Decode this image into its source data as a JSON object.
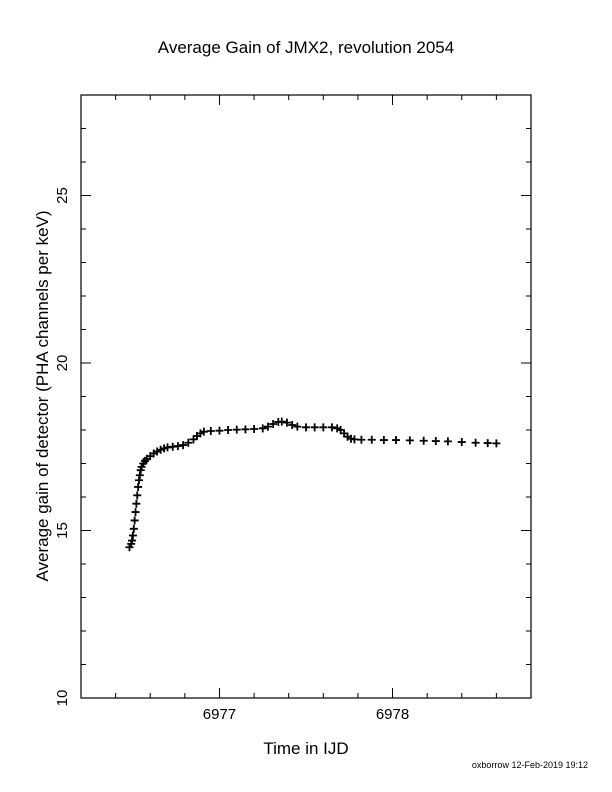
{
  "chart_data": {
    "type": "scatter",
    "title": "Average Gain of JMX2, revolution 2054",
    "xlabel": "Time in IJD",
    "ylabel": "Average gain of detector (PHA channels per keV)",
    "xlim": [
      6976.2,
      6978.8
    ],
    "ylim": [
      10,
      28
    ],
    "x_ticks": [
      6977,
      6978
    ],
    "y_ticks": [
      10,
      15,
      20,
      25
    ],
    "marker": "plus",
    "grid": false,
    "footer": "oxborrow 12-Feb-2019 19:12",
    "series": [
      {
        "points": [
          [
            6976.48,
            14.5
          ],
          [
            6976.49,
            14.6
          ],
          [
            6976.495,
            14.7
          ],
          [
            6976.5,
            14.85
          ],
          [
            6976.505,
            15.05
          ],
          [
            6976.51,
            15.3
          ],
          [
            6976.515,
            15.55
          ],
          [
            6976.52,
            15.8
          ],
          [
            6976.525,
            16.05
          ],
          [
            6976.53,
            16.3
          ],
          [
            6976.535,
            16.5
          ],
          [
            6976.54,
            16.65
          ],
          [
            6976.545,
            16.8
          ],
          [
            6976.55,
            16.9
          ],
          [
            6976.56,
            17.0
          ],
          [
            6976.57,
            17.08
          ],
          [
            6976.58,
            17.14
          ],
          [
            6976.6,
            17.22
          ],
          [
            6976.62,
            17.3
          ],
          [
            6976.64,
            17.36
          ],
          [
            6976.66,
            17.41
          ],
          [
            6976.68,
            17.45
          ],
          [
            6976.7,
            17.48
          ],
          [
            6976.73,
            17.5
          ],
          [
            6976.76,
            17.52
          ],
          [
            6976.79,
            17.55
          ],
          [
            6976.82,
            17.62
          ],
          [
            6976.85,
            17.72
          ],
          [
            6976.87,
            17.82
          ],
          [
            6976.89,
            17.9
          ],
          [
            6976.91,
            17.95
          ],
          [
            6976.95,
            17.97
          ],
          [
            6977.0,
            17.98
          ],
          [
            6977.05,
            18.0
          ],
          [
            6977.1,
            18.01
          ],
          [
            6977.15,
            18.02
          ],
          [
            6977.2,
            18.03
          ],
          [
            6977.25,
            18.05
          ],
          [
            6977.28,
            18.1
          ],
          [
            6977.31,
            18.18
          ],
          [
            6977.34,
            18.24
          ],
          [
            6977.36,
            18.25
          ],
          [
            6977.39,
            18.22
          ],
          [
            6977.42,
            18.15
          ],
          [
            6977.45,
            18.1
          ],
          [
            6977.5,
            18.08
          ],
          [
            6977.55,
            18.08
          ],
          [
            6977.6,
            18.08
          ],
          [
            6977.65,
            18.08
          ],
          [
            6977.68,
            18.05
          ],
          [
            6977.7,
            18.0
          ],
          [
            6977.72,
            17.9
          ],
          [
            6977.74,
            17.8
          ],
          [
            6977.76,
            17.74
          ],
          [
            6977.78,
            17.72
          ],
          [
            6977.82,
            17.71
          ],
          [
            6977.88,
            17.71
          ],
          [
            6977.95,
            17.7
          ],
          [
            6978.02,
            17.7
          ],
          [
            6978.1,
            17.69
          ],
          [
            6978.18,
            17.68
          ],
          [
            6978.25,
            17.67
          ],
          [
            6978.32,
            17.66
          ],
          [
            6978.4,
            17.64
          ],
          [
            6978.48,
            17.62
          ],
          [
            6978.55,
            17.61
          ],
          [
            6978.6,
            17.6
          ]
        ]
      }
    ]
  }
}
